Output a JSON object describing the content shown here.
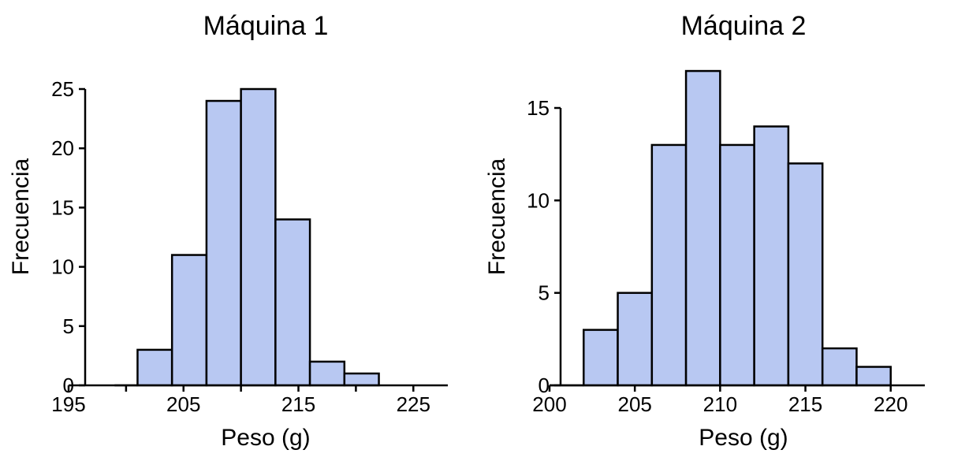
{
  "colors": {
    "bar_fill": "#b8c8f2",
    "bar_stroke": "#000000"
  },
  "chart_data": [
    {
      "type": "bar",
      "title": "Máquina 1",
      "xlabel": "Peso (g)",
      "ylabel": "Frecuencia",
      "bin_edges": [
        199,
        201,
        204,
        207,
        210,
        213,
        216,
        219,
        222
      ],
      "bins": [
        {
          "x0": 199,
          "x1": 201,
          "count": 0
        },
        {
          "x0": 201,
          "x1": 204,
          "count": 3
        },
        {
          "x0": 204,
          "x1": 207,
          "count": 11
        },
        {
          "x0": 207,
          "x1": 210,
          "count": 24
        },
        {
          "x0": 210,
          "x1": 213,
          "count": 25
        },
        {
          "x0": 213,
          "x1": 216,
          "count": 14
        },
        {
          "x0": 216,
          "x1": 219,
          "count": 2
        },
        {
          "x0": 219,
          "x1": 222,
          "count": 1
        }
      ],
      "xlim": [
        195,
        228
      ],
      "ylim": [
        0,
        25
      ],
      "xticks": [
        195,
        200,
        205,
        210,
        215,
        220,
        225
      ],
      "xtick_labels": [
        "195",
        "",
        "205",
        "",
        "215",
        "",
        "225"
      ],
      "yticks": [
        0,
        5,
        10,
        15,
        20,
        25
      ],
      "ytick_labels": [
        "0",
        "5",
        "10",
        "15",
        "20",
        "25"
      ],
      "grid": false
    },
    {
      "type": "bar",
      "title": "Máquina 2",
      "xlabel": "Peso (g)",
      "ylabel": "Frecuencia",
      "bins": [
        {
          "x0": 200,
          "x1": 202,
          "count": 0
        },
        {
          "x0": 202,
          "x1": 204,
          "count": 3
        },
        {
          "x0": 204,
          "x1": 206,
          "count": 5
        },
        {
          "x0": 206,
          "x1": 208,
          "count": 13
        },
        {
          "x0": 208,
          "x1": 210,
          "count": 17
        },
        {
          "x0": 210,
          "x1": 212,
          "count": 13
        },
        {
          "x0": 212,
          "x1": 214,
          "count": 14
        },
        {
          "x0": 214,
          "x1": 216,
          "count": 12
        },
        {
          "x0": 216,
          "x1": 218,
          "count": 2
        },
        {
          "x0": 218,
          "x1": 220,
          "count": 1
        }
      ],
      "xlim": [
        200,
        222
      ],
      "ylim": [
        0,
        17
      ],
      "xticks": [
        200,
        205,
        210,
        215,
        220
      ],
      "xtick_labels": [
        "200",
        "205",
        "210",
        "215",
        "220"
      ],
      "yticks": [
        0,
        5,
        10,
        15
      ],
      "ytick_labels": [
        "0",
        "5",
        "10",
        "15"
      ],
      "grid": false
    }
  ]
}
